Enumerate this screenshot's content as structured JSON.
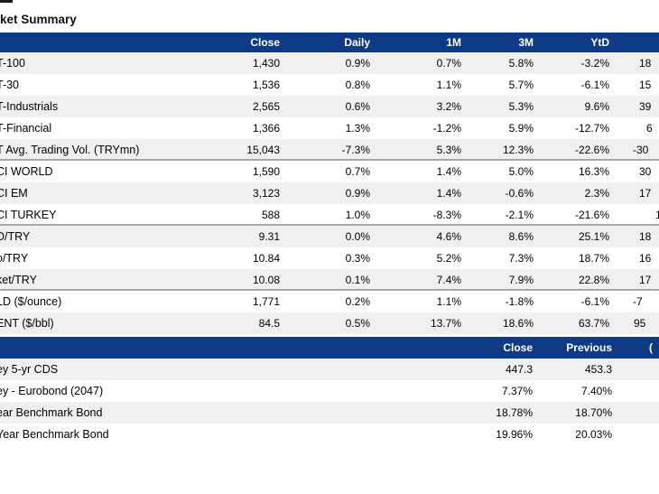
{
  "page": {
    "title": "ket Summary"
  },
  "market_table": {
    "column_headers": [
      "Close",
      "Daily",
      "1M",
      "3M",
      "YtD"
    ],
    "sections": [
      {
        "rows": [
          {
            "label": "T-100",
            "values": [
              "1,430",
              "0.9%",
              "0.7%",
              "5.8%",
              "-3.2%"
            ],
            "clipped": "18"
          },
          {
            "label": "T-30",
            "values": [
              "1,536",
              "0.8%",
              "1.1%",
              "5.7%",
              "-6.1%"
            ],
            "clipped": "15"
          },
          {
            "label": "T-Industrials",
            "values": [
              "2,565",
              "0.6%",
              "3.2%",
              "5.3%",
              "9.6%"
            ],
            "clipped": "39"
          },
          {
            "label": "T-Financial",
            "values": [
              "1,366",
              "1.3%",
              "-1.2%",
              "5.9%",
              "-12.7%"
            ],
            "clipped": "6"
          },
          {
            "label": "T Avg. Trading Vol. (TRYmn)",
            "values": [
              "15,043",
              "-7.3%",
              "5.3%",
              "12.3%",
              "-22.6%"
            ],
            "clipped": "-30"
          }
        ]
      },
      {
        "rows": [
          {
            "label": "CI WORLD",
            "values": [
              "1,590",
              "0.7%",
              "1.4%",
              "5.0%",
              "16.3%"
            ],
            "clipped": "30"
          },
          {
            "label": "CI EM",
            "values": [
              "3,123",
              "0.9%",
              "1.4%",
              "-0.6%",
              "2.3%"
            ],
            "clipped": "17"
          },
          {
            "label": "CI TURKEY",
            "values": [
              "588",
              "1.0%",
              "-8.3%",
              "-2.1%",
              "-21.6%"
            ],
            "clipped": "1"
          }
        ]
      },
      {
        "rows": [
          {
            "label": "D/TRY",
            "values": [
              "9.31",
              "0.0%",
              "4.6%",
              "8.6%",
              "25.1%"
            ],
            "clipped": "18"
          },
          {
            "label": "o/TRY",
            "values": [
              "10.84",
              "0.3%",
              "5.2%",
              "7.3%",
              "18.7%"
            ],
            "clipped": "16"
          },
          {
            "label": "ket/TRY",
            "values": [
              "10.08",
              "0.1%",
              "7.4%",
              "7.9%",
              "22.8%"
            ],
            "clipped": "17"
          }
        ]
      },
      {
        "rows": [
          {
            "label": "LD ($/ounce)",
            "values": [
              "1,771",
              "0.2%",
              "1.1%",
              "-1.8%",
              "-6.1%"
            ],
            "clipped": "-7"
          },
          {
            "label": "ENT ($/bbl)",
            "values": [
              "84.5",
              "0.5%",
              "13.7%",
              "18.6%",
              "63.7%"
            ],
            "clipped": "95"
          }
        ]
      }
    ]
  },
  "rates_table": {
    "column_headers": [
      "Close",
      "Previous"
    ],
    "clipped_header": "(",
    "rows": [
      {
        "label": "ey 5-yr CDS",
        "values": [
          "447.3",
          "453.3"
        ]
      },
      {
        "label": "ey - Eurobond (2047)",
        "values": [
          "7.37%",
          "7.40%"
        ]
      },
      {
        "label": "ear Benchmark Bond",
        "values": [
          "18.78%",
          "18.70%"
        ]
      },
      {
        "label": "Year Benchmark Bond",
        "values": [
          "19.96%",
          "20.03%"
        ]
      }
    ]
  },
  "colors": {
    "header_bg": "#0E3A86",
    "header_text": "#FFFFFF",
    "stripe_bg": "#F0F0F0",
    "section_divider": "#A8A8A8",
    "text": "#000000"
  }
}
